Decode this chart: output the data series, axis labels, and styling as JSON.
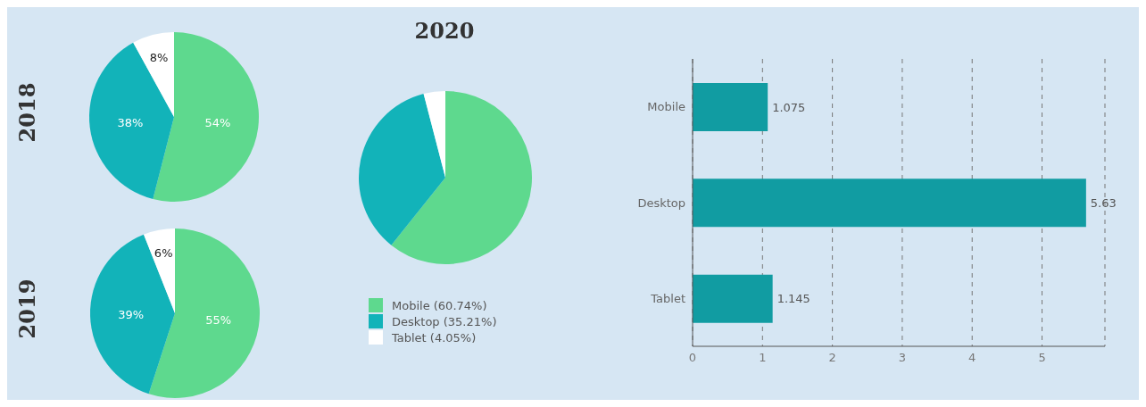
{
  "chart_data": [
    {
      "type": "pie",
      "title": "2018",
      "categories": [
        null,
        null,
        null
      ],
      "values": [
        54,
        38,
        8
      ],
      "colors": [
        "#5ed98e",
        "#12b3b9",
        "#ffffff"
      ],
      "value_labels": [
        "54%",
        "38%",
        "8%"
      ]
    },
    {
      "type": "pie",
      "title": "2019",
      "categories": [
        null,
        null,
        null
      ],
      "values": [
        55,
        39,
        6
      ],
      "colors": [
        "#5ed98e",
        "#12b3b9",
        "#ffffff"
      ],
      "value_labels": [
        "55%",
        "39%",
        "6%"
      ]
    },
    {
      "type": "pie",
      "title": "2020",
      "categories": [
        "Mobile (60.74%)",
        "Desktop (35.21%)",
        "Tablet (4.05%)"
      ],
      "values": [
        60.74,
        35.21,
        4.05
      ],
      "colors": [
        "#5ed98e",
        "#12b3b9",
        "#ffffff"
      ],
      "legend": "bottom"
    },
    {
      "type": "bar",
      "orientation": "horizontal",
      "categories": [
        "Mobile",
        "Desktop",
        "Tablet"
      ],
      "values": [
        1.075,
        5.63,
        1.145
      ],
      "color": "#119ca2",
      "xlim": [
        0,
        5.9
      ],
      "xticks": [
        0,
        1,
        2,
        3,
        4,
        5
      ],
      "grid": "x",
      "data_labels": true
    }
  ]
}
